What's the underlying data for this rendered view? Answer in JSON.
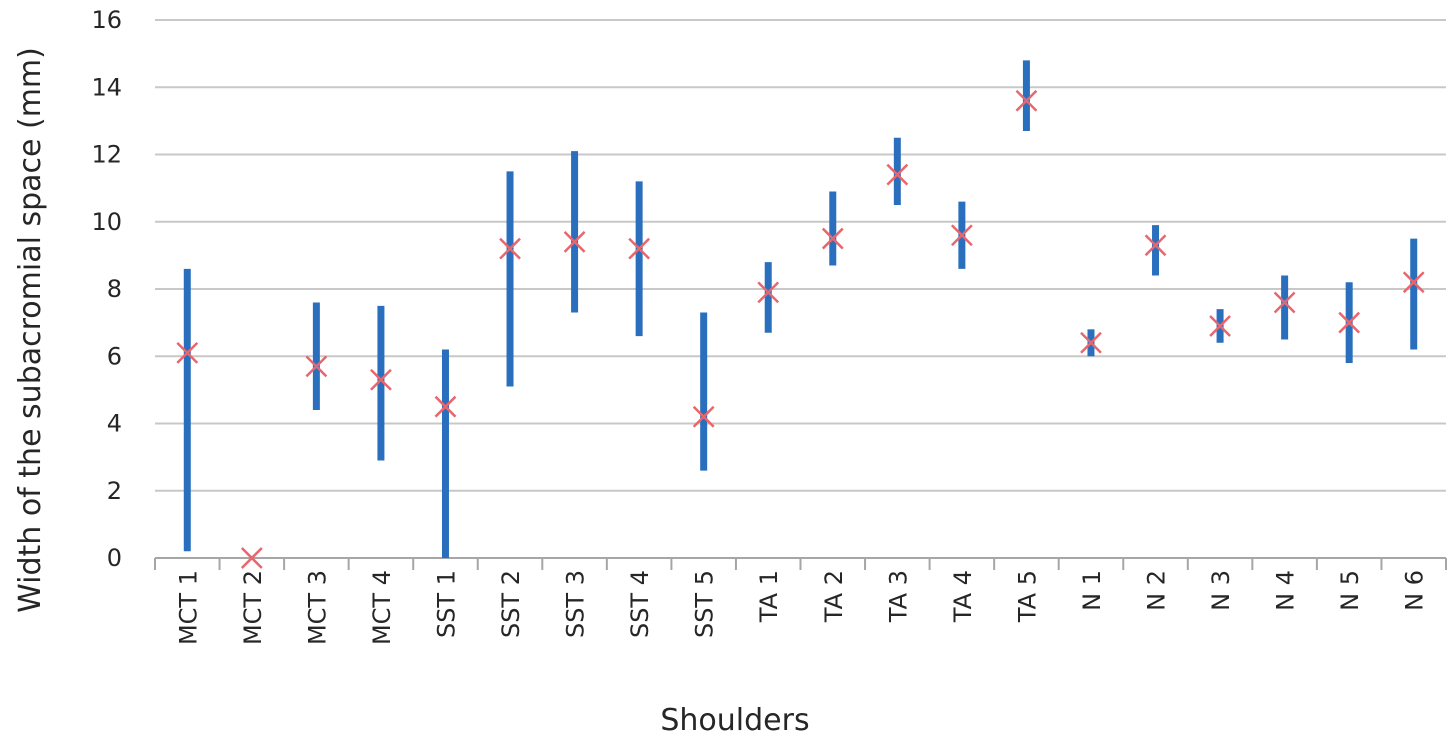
{
  "chart_data": {
    "type": "scatter",
    "title": "",
    "xlabel": "Shoulders",
    "ylabel": "Width of the subacromial space (mm)",
    "ylim": [
      0,
      16
    ],
    "yticks": [
      0,
      2,
      4,
      6,
      8,
      10,
      12,
      14,
      16
    ],
    "grid": true,
    "legend": "none",
    "categories": [
      "MCT 1",
      "MCT 2",
      "MCT 3",
      "MCT 4",
      "SST 1",
      "SST 2",
      "SST 3",
      "SST 4",
      "SST 5",
      "TA 1",
      "TA 2",
      "TA 3",
      "TA 4",
      "TA 5",
      "N 1",
      "N 2",
      "N 3",
      "N 4",
      "N 5",
      "N 6"
    ],
    "series": [
      {
        "marker": "x",
        "values": [
          6.1,
          0,
          5.7,
          5.3,
          4.5,
          9.2,
          9.4,
          9.2,
          4.2,
          7.9,
          9.5,
          11.4,
          9.6,
          13.6,
          6.4,
          9.3,
          6.9,
          7.6,
          7.0,
          8.2
        ],
        "range_low": [
          0.2,
          null,
          4.4,
          2.9,
          0.0,
          5.1,
          7.3,
          6.6,
          2.6,
          6.7,
          8.7,
          10.5,
          8.6,
          12.7,
          6.0,
          8.4,
          6.4,
          6.5,
          5.8,
          6.2
        ],
        "range_high": [
          8.6,
          null,
          7.6,
          7.5,
          6.2,
          11.5,
          12.1,
          11.2,
          7.3,
          8.8,
          10.9,
          12.5,
          10.6,
          14.8,
          6.8,
          9.9,
          7.4,
          8.4,
          8.2,
          9.5
        ]
      }
    ],
    "colors": {
      "range_bar": "#2a6fbe",
      "marker": "#e8666d",
      "grid": "#c8c8c8",
      "axis": "#a6a6a6"
    }
  }
}
